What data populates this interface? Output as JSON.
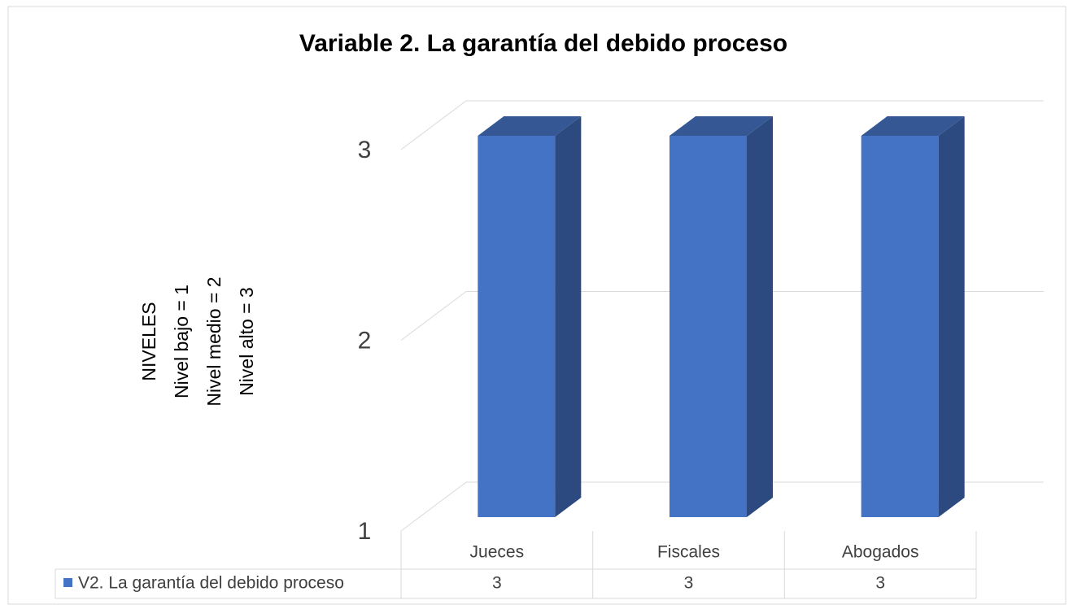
{
  "chart_data": {
    "type": "bar3d",
    "title": "Variable 2. La garantía del debido proceso",
    "y_label": [
      "NIVELES",
      "Nivel bajo = 1",
      "Nivel medio = 2",
      "Nivel alto = 3"
    ],
    "categories": [
      "Jueces",
      "Fiscales",
      "Abogados"
    ],
    "series": [
      {
        "name": "V2. La garantía del debido proceso",
        "color": "#4472c4",
        "values": [
          3,
          3,
          3
        ]
      }
    ],
    "ylim": [
      1,
      3
    ],
    "yticks": [
      1,
      2,
      3
    ],
    "grid": true
  }
}
